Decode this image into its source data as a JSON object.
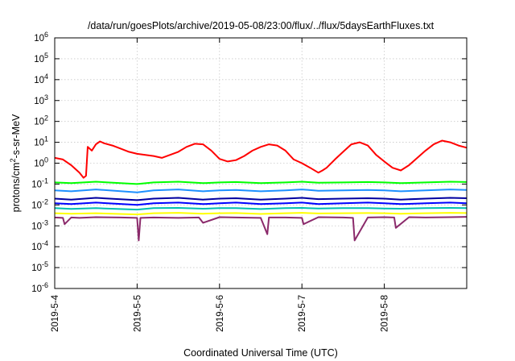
{
  "chart_data": {
    "type": "line",
    "title": "/data/run/goesPlots/archive/2019-05-08/23:00/flux/../flux/5daysEarthFluxes.txt",
    "xlabel": "Coordinated Universal Time (UTC)",
    "ylabel_base": "protons/cm",
    "ylabel_sup": "2",
    "ylabel_rest": "-s-sr-MeV",
    "yscale": "log",
    "ylim": [
      1e-06,
      1000000.0
    ],
    "xlim": [
      0,
      5
    ],
    "grid": true,
    "y_ticks": [
      {
        "base": "10",
        "exp": "-6",
        "value": -6
      },
      {
        "base": "10",
        "exp": "-5",
        "value": -5
      },
      {
        "base": "10",
        "exp": "-4",
        "value": -4
      },
      {
        "base": "10",
        "exp": "-3",
        "value": -3
      },
      {
        "base": "10",
        "exp": "-2",
        "value": -2
      },
      {
        "base": "10",
        "exp": "-1",
        "value": -1
      },
      {
        "base": "10",
        "exp": "0",
        "value": 0
      },
      {
        "base": "10",
        "exp": "1",
        "value": 1
      },
      {
        "base": "10",
        "exp": "2",
        "value": 2
      },
      {
        "base": "10",
        "exp": "3",
        "value": 3
      },
      {
        "base": "10",
        "exp": "4",
        "value": 4
      },
      {
        "base": "10",
        "exp": "5",
        "value": 5
      },
      {
        "base": "10",
        "exp": "6",
        "value": 6
      }
    ],
    "x_ticks": [
      {
        "label": "2019-5-4",
        "value": 0
      },
      {
        "label": "2019-5-5",
        "value": 1
      },
      {
        "label": "2019-5-6",
        "value": 2
      },
      {
        "label": "2019-5-7",
        "value": 3
      },
      {
        "label": "2019-5-8",
        "value": 4
      }
    ],
    "series": [
      {
        "color": "#8b2a6b",
        "x": [
          0,
          0.1,
          0.12,
          0.2,
          0.3,
          0.5,
          0.8,
          1.0,
          1.02,
          1.04,
          1.2,
          1.5,
          1.75,
          1.8,
          2.0,
          2.2,
          2.5,
          2.58,
          2.6,
          2.8,
          3.0,
          3.02,
          3.2,
          3.5,
          3.62,
          3.64,
          3.8,
          4.0,
          4.12,
          4.14,
          4.3,
          4.5,
          4.8,
          5.0
        ],
        "y": [
          0.0025,
          0.0024,
          0.0012,
          0.0025,
          0.0024,
          0.0026,
          0.0025,
          0.0024,
          0.0002,
          0.0024,
          0.0025,
          0.0024,
          0.0025,
          0.0014,
          0.0026,
          0.0025,
          0.0024,
          0.0004,
          0.0025,
          0.0025,
          0.0024,
          0.0012,
          0.0026,
          0.0025,
          0.0024,
          0.0002,
          0.0025,
          0.0026,
          0.0025,
          0.0008,
          0.0026,
          0.0025,
          0.0026,
          0.0027
        ]
      },
      {
        "color": "#ffff00",
        "x": [
          0,
          0.2,
          0.5,
          1.0,
          1.2,
          1.5,
          1.8,
          2.0,
          2.2,
          2.5,
          2.8,
          3.0,
          3.2,
          3.5,
          3.8,
          4.0,
          4.2,
          4.5,
          4.8,
          5.0
        ],
        "y": [
          0.004,
          0.0038,
          0.004,
          0.0035,
          0.004,
          0.0042,
          0.0038,
          0.004,
          0.0041,
          0.0037,
          0.004,
          0.0042,
          0.0039,
          0.004,
          0.0041,
          0.004,
          0.0038,
          0.004,
          0.0042,
          0.0041
        ]
      },
      {
        "color": "#00c0b0",
        "x": [
          0,
          0.2,
          0.5,
          1.0,
          1.2,
          1.5,
          1.8,
          2.0,
          2.2,
          2.5,
          2.8,
          3.0,
          3.2,
          3.5,
          3.8,
          4.0,
          4.2,
          4.5,
          4.8,
          5.0
        ],
        "y": [
          0.007,
          0.0065,
          0.007,
          0.006,
          0.007,
          0.0072,
          0.0066,
          0.007,
          0.0071,
          0.0064,
          0.007,
          0.0072,
          0.0068,
          0.007,
          0.0071,
          0.0068,
          0.0066,
          0.007,
          0.0072,
          0.0071
        ]
      },
      {
        "color": "#0000ff",
        "x": [
          0,
          0.2,
          0.5,
          1.0,
          1.2,
          1.5,
          1.8,
          2.0,
          2.2,
          2.5,
          2.8,
          3.0,
          3.2,
          3.5,
          3.8,
          4.0,
          4.2,
          4.5,
          4.8,
          5.0
        ],
        "y": [
          0.012,
          0.011,
          0.013,
          0.01,
          0.012,
          0.013,
          0.011,
          0.012,
          0.013,
          0.011,
          0.012,
          0.013,
          0.011,
          0.012,
          0.013,
          0.012,
          0.011,
          0.012,
          0.013,
          0.012
        ]
      },
      {
        "color": "#0000a0",
        "x": [
          0,
          0.2,
          0.5,
          1.0,
          1.2,
          1.5,
          1.8,
          2.0,
          2.2,
          2.5,
          2.8,
          3.0,
          3.2,
          3.5,
          3.8,
          4.0,
          4.2,
          4.5,
          4.8,
          5.0
        ],
        "y": [
          0.02,
          0.018,
          0.022,
          0.017,
          0.02,
          0.022,
          0.018,
          0.02,
          0.021,
          0.018,
          0.02,
          0.022,
          0.019,
          0.02,
          0.021,
          0.02,
          0.018,
          0.02,
          0.022,
          0.021
        ]
      },
      {
        "color": "#1e90ff",
        "x": [
          0,
          0.2,
          0.5,
          1.0,
          1.2,
          1.5,
          1.8,
          2.0,
          2.2,
          2.5,
          2.8,
          3.0,
          3.2,
          3.5,
          3.8,
          4.0,
          4.2,
          4.5,
          4.8,
          5.0
        ],
        "y": [
          0.05,
          0.045,
          0.055,
          0.04,
          0.05,
          0.055,
          0.045,
          0.05,
          0.052,
          0.045,
          0.05,
          0.055,
          0.048,
          0.05,
          0.052,
          0.05,
          0.045,
          0.05,
          0.055,
          0.052
        ]
      },
      {
        "color": "#00ff00",
        "x": [
          0,
          0.2,
          0.5,
          1.0,
          1.2,
          1.5,
          1.8,
          2.0,
          2.2,
          2.5,
          2.8,
          3.0,
          3.2,
          3.5,
          3.8,
          4.0,
          4.2,
          4.5,
          4.8,
          5.0
        ],
        "y": [
          0.12,
          0.11,
          0.13,
          0.1,
          0.12,
          0.13,
          0.11,
          0.12,
          0.125,
          0.11,
          0.12,
          0.13,
          0.115,
          0.12,
          0.125,
          0.12,
          0.11,
          0.12,
          0.13,
          0.125
        ]
      },
      {
        "color": "#ff0000",
        "x": [
          0,
          0.1,
          0.2,
          0.3,
          0.35,
          0.38,
          0.4,
          0.45,
          0.5,
          0.55,
          0.6,
          0.7,
          0.8,
          0.9,
          1.0,
          1.1,
          1.2,
          1.3,
          1.4,
          1.5,
          1.6,
          1.7,
          1.8,
          1.9,
          2.0,
          2.1,
          2.2,
          2.3,
          2.4,
          2.5,
          2.6,
          2.7,
          2.8,
          2.9,
          3.0,
          3.1,
          3.2,
          3.25,
          3.3,
          3.4,
          3.5,
          3.6,
          3.7,
          3.8,
          3.9,
          4.0,
          4.1,
          4.2,
          4.3,
          4.4,
          4.5,
          4.6,
          4.7,
          4.8,
          4.9,
          5.0
        ],
        "y": [
          1.8,
          1.5,
          0.8,
          0.35,
          0.2,
          0.25,
          6,
          4,
          8,
          11,
          9,
          7,
          5,
          3.5,
          2.8,
          2.5,
          2.2,
          1.8,
          2.5,
          3.5,
          6,
          8.5,
          8,
          4,
          1.6,
          1.2,
          1.4,
          2.2,
          4,
          6,
          8,
          7,
          4,
          1.5,
          1.0,
          0.6,
          0.35,
          0.45,
          0.6,
          1.5,
          3.5,
          8,
          10,
          7,
          2.5,
          1.2,
          0.6,
          0.45,
          0.8,
          1.8,
          4,
          8,
          12,
          10,
          7,
          5.5
        ]
      }
    ]
  }
}
